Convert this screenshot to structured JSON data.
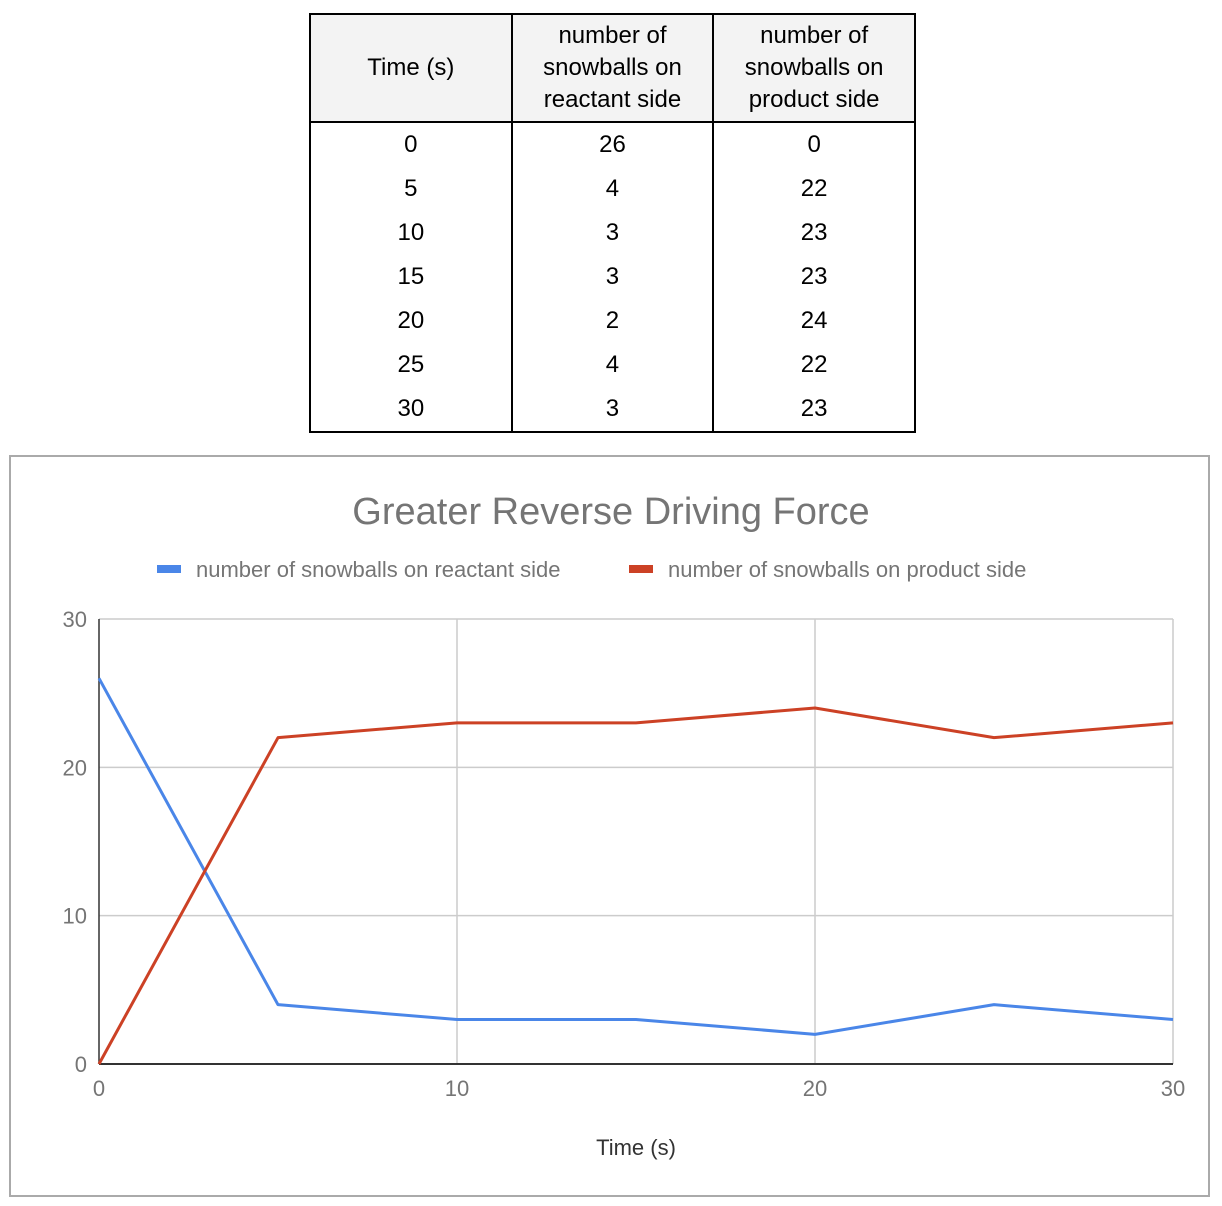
{
  "table": {
    "headers": [
      "Time (s)",
      "number of snowballs on reactant side",
      "number of snowballs on product side"
    ],
    "rows": [
      [
        "0",
        "26",
        "0"
      ],
      [
        "5",
        "4",
        "22"
      ],
      [
        "10",
        "3",
        "23"
      ],
      [
        "15",
        "3",
        "23"
      ],
      [
        "20",
        "2",
        "24"
      ],
      [
        "25",
        "4",
        "22"
      ],
      [
        "30",
        "3",
        "23"
      ]
    ]
  },
  "chart_data": {
    "type": "line",
    "title": "Greater Reverse Driving Force",
    "xlabel": "Time (s)",
    "ylabel": "",
    "x": [
      0,
      5,
      10,
      15,
      20,
      25,
      30
    ],
    "xlim": [
      0,
      30
    ],
    "ylim": [
      0,
      30
    ],
    "xticks": [
      0,
      10,
      20,
      30
    ],
    "yticks": [
      0,
      10,
      20,
      30
    ],
    "grid": true,
    "legend": "top",
    "series": [
      {
        "name": "number of snowballs on reactant side",
        "values": [
          26,
          4,
          3,
          3,
          2,
          4,
          3
        ],
        "color": "#4a86e8"
      },
      {
        "name": "number of snowballs on product side",
        "values": [
          0,
          22,
          23,
          23,
          24,
          22,
          23
        ],
        "color": "#cc4125"
      }
    ]
  }
}
